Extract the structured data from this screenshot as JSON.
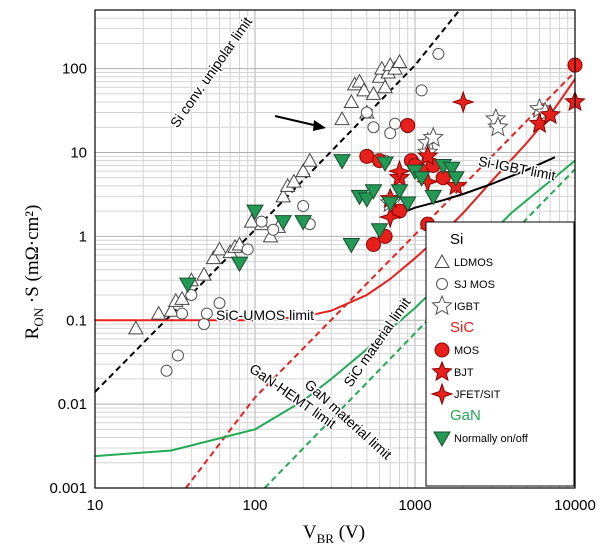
{
  "chart_data": {
    "type": "scatter",
    "x_scale": "log",
    "y_scale": "log",
    "xlim": [
      10,
      10000
    ],
    "ylim": [
      0.001,
      500
    ],
    "grid": true,
    "legend_position": "right",
    "xlabel": {
      "main": "V",
      "sub": "BR",
      "suffix": "(V)"
    },
    "ylabel": {
      "main": "R",
      "sub": "ON",
      "suffix": "·S (mΩ·cm²)"
    },
    "x_ticks": [
      {
        "value": 10,
        "label": "10"
      },
      {
        "value": 100,
        "label": "100"
      },
      {
        "value": 1000,
        "label": "1000"
      },
      {
        "value": 10000,
        "label": "10000"
      }
    ],
    "y_ticks": [
      {
        "value": 0.001,
        "label": "0.001"
      },
      {
        "value": 0.01,
        "label": "0.01"
      },
      {
        "value": 0.1,
        "label": "0.1"
      },
      {
        "value": 1,
        "label": "1"
      },
      {
        "value": 10,
        "label": "10"
      },
      {
        "value": 100,
        "label": "100"
      }
    ],
    "limit_lines": [
      {
        "label": "Si conv. unipolar limit",
        "color": "#000000",
        "dash": true,
        "points": [
          [
            10,
            0.014
          ],
          [
            100,
            1.2
          ],
          [
            1000,
            110
          ],
          [
            1900,
            500
          ]
        ]
      },
      {
        "label": "SiC-UMOS limit",
        "color": "#e8201c",
        "dash": false,
        "points": [
          [
            10,
            0.1
          ],
          [
            100,
            0.1
          ],
          [
            200,
            0.11
          ],
          [
            300,
            0.13
          ],
          [
            500,
            0.2
          ],
          [
            700,
            0.31
          ],
          [
            1000,
            0.55
          ],
          [
            1500,
            1.1
          ],
          [
            2000,
            1.9
          ],
          [
            3000,
            4.5
          ],
          [
            5000,
            13
          ],
          [
            7000,
            28
          ],
          [
            10000,
            75
          ]
        ]
      },
      {
        "label": "SiC material limit",
        "color": "#e8201c",
        "dash": true,
        "points": [
          [
            37,
            0.001
          ],
          [
            100,
            0.012
          ],
          [
            1000,
            1.05
          ],
          [
            10000,
            92
          ]
        ]
      },
      {
        "label": "Si-IGBT limit",
        "color": "#000000",
        "dash": false,
        "points": [
          [
            700,
            1.85
          ],
          [
            850,
            1.95
          ],
          [
            1000,
            2.2
          ],
          [
            1500,
            2.7
          ],
          [
            2000,
            3.2
          ],
          [
            3000,
            4.2
          ],
          [
            5000,
            6.2
          ],
          [
            7500,
            8.8
          ]
        ]
      },
      {
        "label": "GaN-HEMT limit",
        "color": "#22aa55",
        "dash": false,
        "points": [
          [
            10,
            0.0024
          ],
          [
            30,
            0.0028
          ],
          [
            100,
            0.005
          ],
          [
            200,
            0.011
          ],
          [
            300,
            0.02
          ],
          [
            500,
            0.045
          ],
          [
            1000,
            0.14
          ],
          [
            2000,
            0.5
          ],
          [
            4000,
            1.9
          ],
          [
            10000,
            8
          ]
        ]
      },
      {
        "label": "GaN material limit",
        "color": "#22aa55",
        "dash": true,
        "points": [
          [
            115,
            0.001
          ],
          [
            1000,
            0.07
          ],
          [
            10000,
            6.3
          ]
        ]
      }
    ],
    "series": [
      {
        "name": "LDMOS",
        "group": "Si",
        "marker": "triangle",
        "points": [
          [
            18,
            0.08
          ],
          [
            25,
            0.12
          ],
          [
            30,
            0.13
          ],
          [
            32,
            0.17
          ],
          [
            35,
            0.18
          ],
          [
            40,
            0.3
          ],
          [
            48,
            0.35
          ],
          [
            55,
            0.55
          ],
          [
            60,
            0.7
          ],
          [
            70,
            0.65
          ],
          [
            75,
            0.75
          ],
          [
            80,
            0.8
          ],
          [
            95,
            1.5
          ],
          [
            110,
            1.4
          ],
          [
            125,
            1
          ],
          [
            140,
            1.3
          ],
          [
            150,
            3
          ],
          [
            160,
            4
          ],
          [
            175,
            4.5
          ],
          [
            200,
            6
          ],
          [
            220,
            8
          ],
          [
            350,
            25
          ],
          [
            400,
            40
          ],
          [
            420,
            65
          ],
          [
            450,
            70
          ],
          [
            480,
            55
          ],
          [
            500,
            30
          ],
          [
            550,
            50
          ],
          [
            600,
            80
          ],
          [
            620,
            100
          ],
          [
            650,
            60
          ],
          [
            680,
            90
          ],
          [
            700,
            110
          ],
          [
            750,
            100
          ],
          [
            800,
            120
          ]
        ]
      },
      {
        "name": "SJ MOS",
        "group": "Si",
        "marker": "circle",
        "points": [
          [
            28,
            0.025
          ],
          [
            33,
            0.038
          ],
          [
            35,
            0.12
          ],
          [
            40,
            0.2
          ],
          [
            48,
            0.09
          ],
          [
            50,
            0.12
          ],
          [
            60,
            0.16
          ],
          [
            90,
            0.7
          ],
          [
            110,
            1.5
          ],
          [
            130,
            1.2
          ],
          [
            200,
            2.3
          ],
          [
            220,
            1.4
          ],
          [
            500,
            30
          ],
          [
            550,
            20
          ],
          [
            650,
            8
          ],
          [
            700,
            17
          ],
          [
            750,
            22
          ],
          [
            900,
            20
          ],
          [
            1100,
            55
          ],
          [
            1400,
            150
          ]
        ]
      },
      {
        "name": "IGBT",
        "group": "Si",
        "marker": "star-outline",
        "points": [
          [
            700,
            2.5
          ],
          [
            1200,
            13
          ],
          [
            1200,
            10
          ],
          [
            1300,
            15
          ],
          [
            3200,
            25
          ],
          [
            3300,
            20
          ],
          [
            6000,
            33
          ],
          [
            6500,
            30
          ]
        ]
      },
      {
        "name": "MOS",
        "group": "SiC",
        "marker": "circle-filled",
        "points": [
          [
            500,
            9
          ],
          [
            550,
            0.8
          ],
          [
            600,
            8
          ],
          [
            650,
            1
          ],
          [
            800,
            2
          ],
          [
            900,
            21
          ],
          [
            950,
            8
          ],
          [
            1000,
            7
          ],
          [
            1100,
            6
          ],
          [
            1200,
            1.4
          ],
          [
            1300,
            7
          ],
          [
            1500,
            5
          ],
          [
            10000,
            110
          ]
        ]
      },
      {
        "name": "BJT",
        "group": "SiC",
        "marker": "star-filled",
        "points": [
          [
            700,
            2.8
          ],
          [
            800,
            5
          ],
          [
            1200,
            9
          ],
          [
            1800,
            4
          ],
          [
            6000,
            22
          ],
          [
            7000,
            28
          ],
          [
            10000,
            40
          ]
        ]
      },
      {
        "name": "JFET/SIT",
        "group": "SiC",
        "marker": "diamond-star",
        "points": [
          [
            700,
            1.7
          ],
          [
            800,
            6
          ],
          [
            1200,
            4.5
          ],
          [
            2000,
            40
          ]
        ]
      },
      {
        "name": "Normally on/off",
        "group": "GaN",
        "marker": "triangle-down",
        "points": [
          [
            38,
            0.27
          ],
          [
            80,
            0.48
          ],
          [
            100,
            2
          ],
          [
            150,
            1.5
          ],
          [
            200,
            1.5
          ],
          [
            350,
            8
          ],
          [
            400,
            0.8
          ],
          [
            450,
            3
          ],
          [
            500,
            2.8
          ],
          [
            550,
            3.5
          ],
          [
            600,
            1.2
          ],
          [
            650,
            7.5
          ],
          [
            700,
            2.5
          ],
          [
            800,
            3.5
          ],
          [
            900,
            2.5
          ],
          [
            1000,
            6
          ],
          [
            1100,
            5
          ],
          [
            1300,
            3
          ],
          [
            1500,
            7
          ],
          [
            1700,
            6.5
          ],
          [
            1800,
            5
          ]
        ]
      }
    ],
    "legend": {
      "groups": [
        {
          "title": "Si",
          "color": "#000000",
          "items": [
            {
              "label": "LDMOS",
              "marker": "triangle"
            },
            {
              "label": "SJ MOS",
              "marker": "circle"
            },
            {
              "label": "IGBT",
              "marker": "star-outline"
            }
          ]
        },
        {
          "title": "SiC",
          "color": "#e8201c",
          "items": [
            {
              "label": "MOS",
              "marker": "circle-filled"
            },
            {
              "label": "BJT",
              "marker": "star-filled"
            },
            {
              "label": "JFET/SIT",
              "marker": "diamond-star"
            }
          ]
        },
        {
          "title": "GaN",
          "color": "#22aa55",
          "items": [
            {
              "label": "Normally on/off",
              "marker": "triangle-down"
            }
          ]
        }
      ]
    },
    "colors": {
      "si": "#000000",
      "sic_fill": "#e8201c",
      "sic_stroke": "#8b0000",
      "gan_fill": "#229955",
      "gan_stroke": "#1a4d2e"
    }
  }
}
